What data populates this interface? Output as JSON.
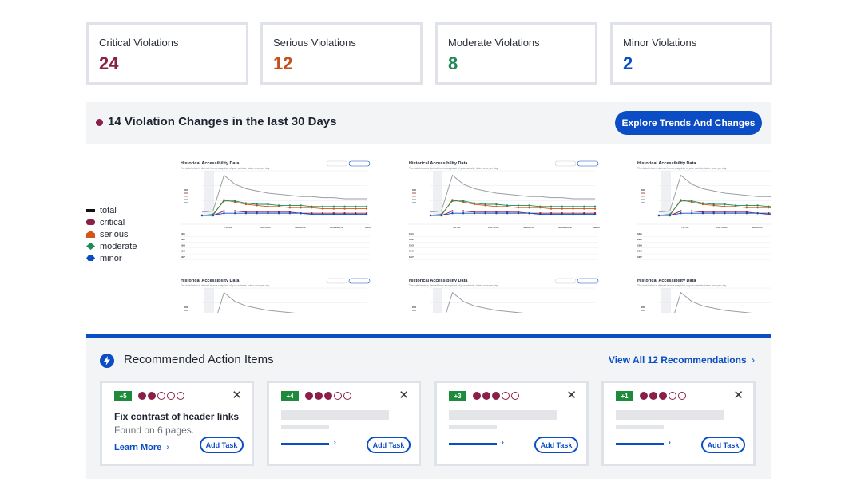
{
  "stats": [
    {
      "label": "Critical Violations",
      "value": "24",
      "color": "#8a1f47"
    },
    {
      "label": "Serious Violations",
      "value": "12",
      "color": "#c5501c"
    },
    {
      "label": "Moderate Violations",
      "value": "8",
      "color": "#1e8a5a"
    },
    {
      "label": "Minor Violations",
      "value": "2",
      "color": "#0b4dc4"
    }
  ],
  "changes": {
    "title": "14 Violation Changes in the last 30 Days",
    "button": "Explore Trends And Changes"
  },
  "legend": [
    {
      "label": "total",
      "color": "#111111"
    },
    {
      "label": "critical",
      "color": "#8a1f47"
    },
    {
      "label": "serious",
      "color": "#d2561c"
    },
    {
      "label": "moderate",
      "color": "#1e8a5a"
    },
    {
      "label": "minor",
      "color": "#0b4dc4"
    }
  ],
  "preview": {
    "title": "Historical Accessibility Data",
    "subtitle": "The data below is derived from a snapshot of your website, taken once per day.",
    "columns": [
      "TOTAL",
      "CRITICAL",
      "SERIOUS",
      "MODERATE",
      "MINOR"
    ],
    "rows": [
      "10/1",
      "10/2",
      "10/3",
      "10/6",
      "10/7"
    ]
  },
  "recommendations": {
    "title": "Recommended Action Items",
    "view_all": "View All 12 Recommendations",
    "cards": [
      {
        "badge": "+5",
        "filled": 2,
        "title": "Fix contrast of header links",
        "subtitle": "Found on 6 pages.",
        "link": "Learn More",
        "button": "Add Task"
      },
      {
        "badge": "+4",
        "filled": 3,
        "button": "Add Task"
      },
      {
        "badge": "+3",
        "filled": 3,
        "button": "Add Task"
      },
      {
        "badge": "+1",
        "filled": 3,
        "button": "Add Task"
      }
    ]
  }
}
